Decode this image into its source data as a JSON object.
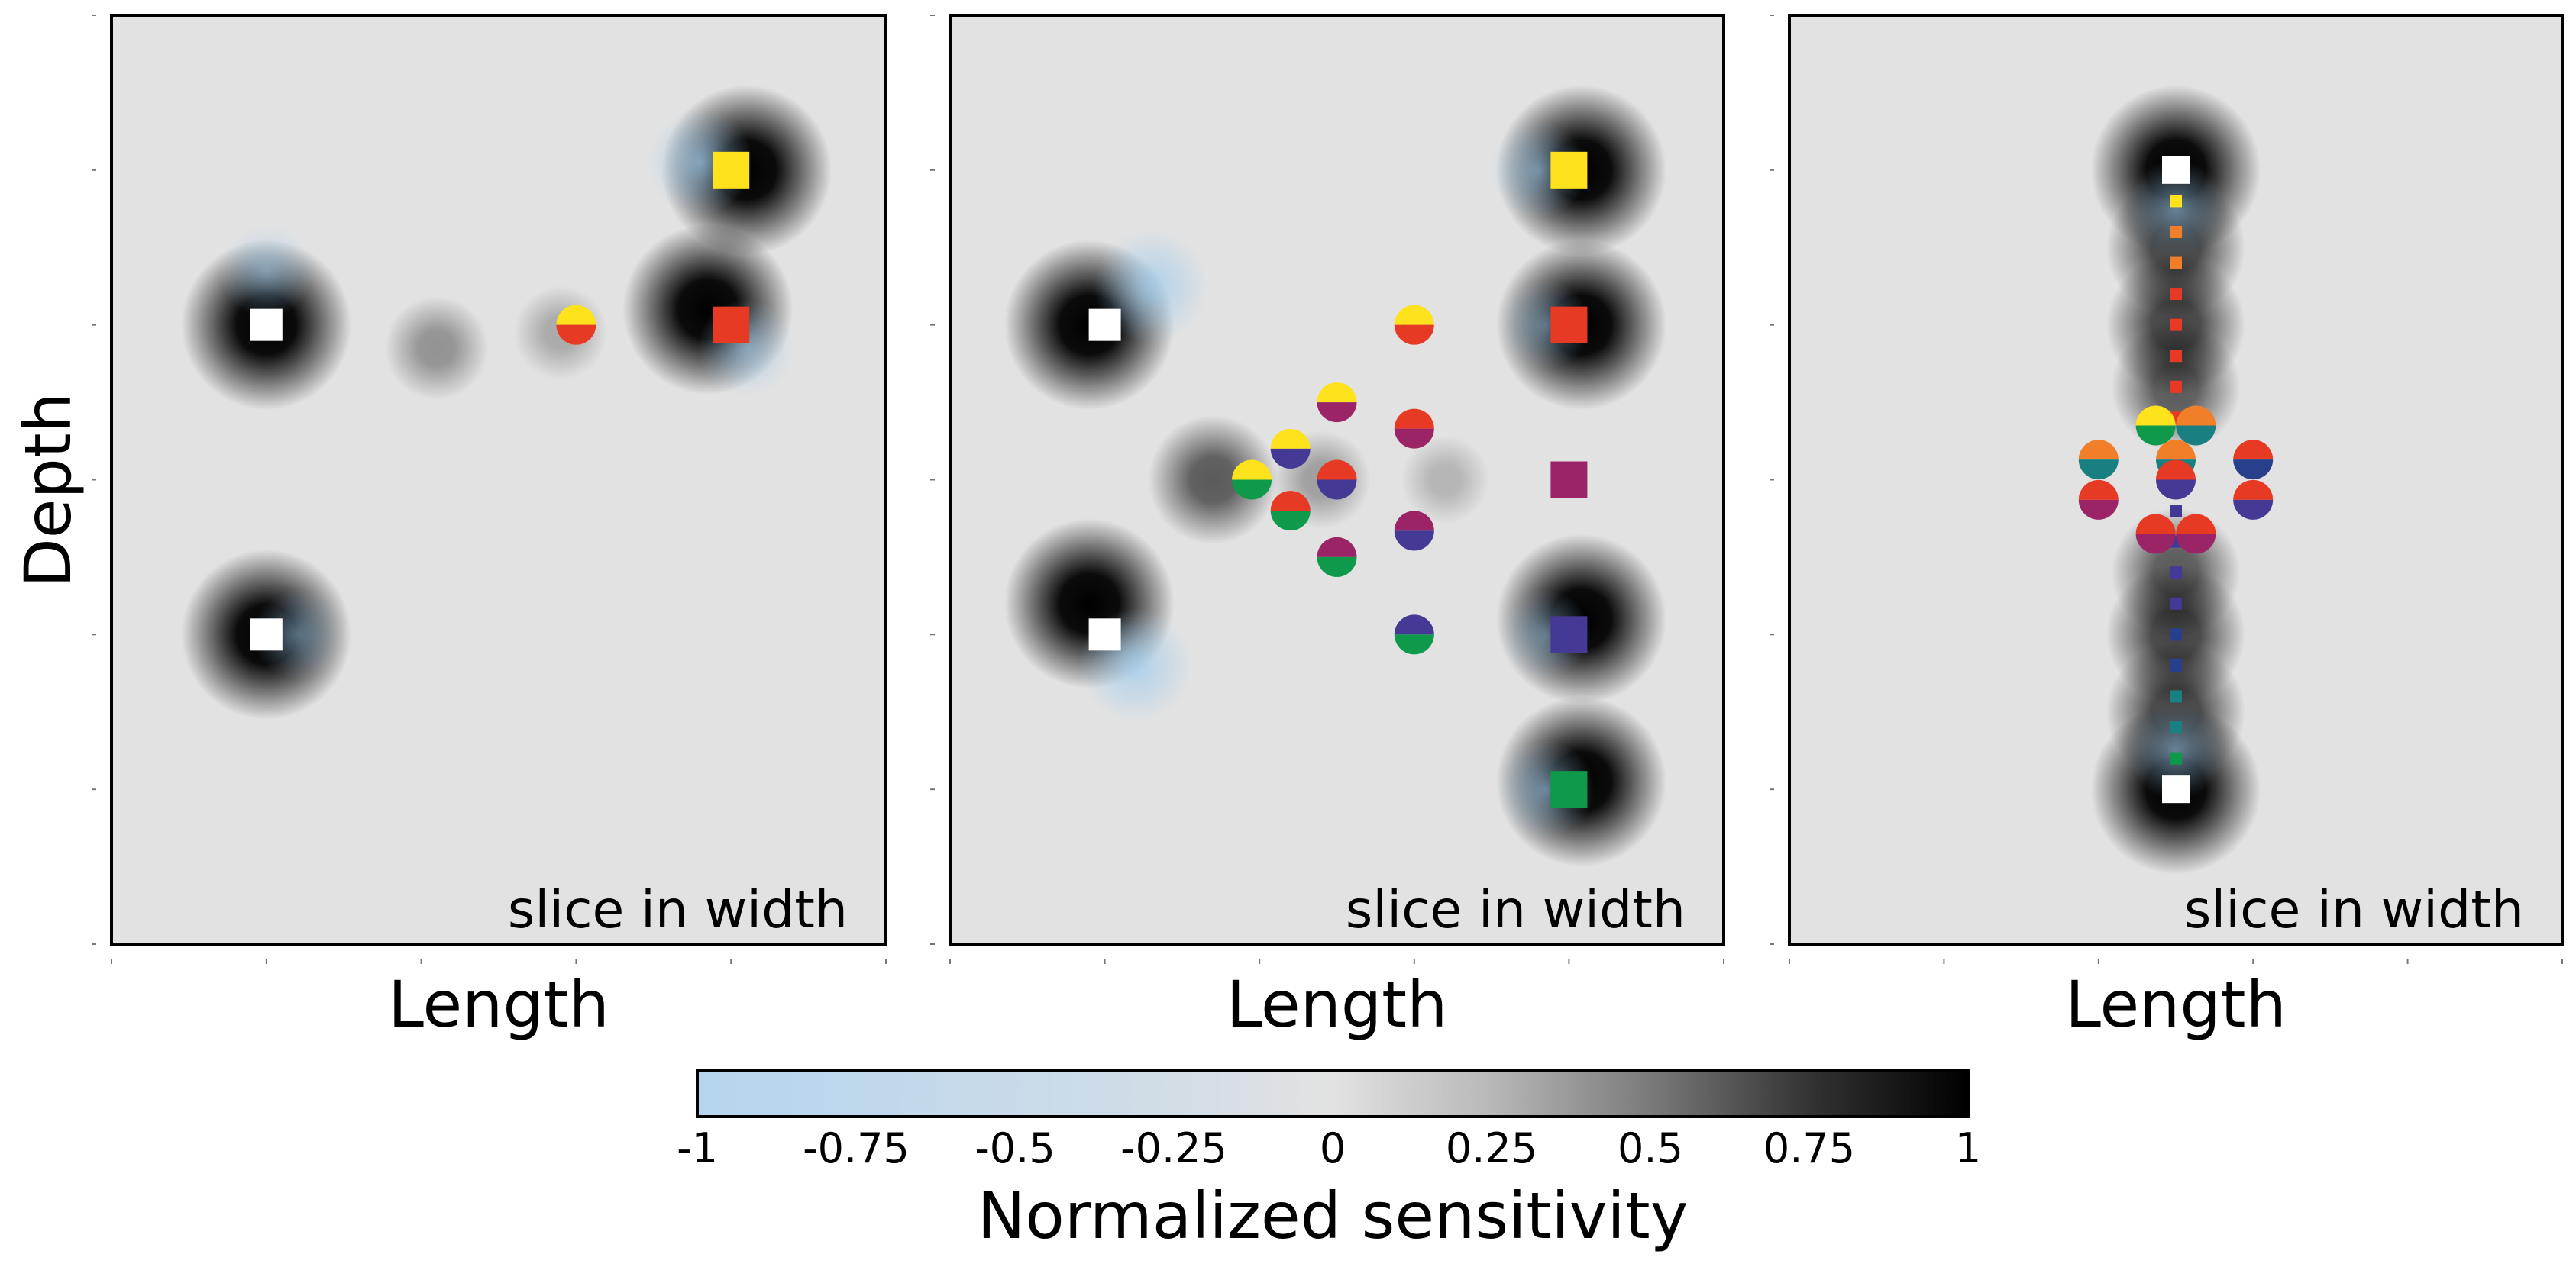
{
  "figure": {
    "ylabel": "Depth",
    "panel_label": "slice in width"
  },
  "colorbar": {
    "label": "Normalized sensitivity",
    "ticks": [
      "-1",
      "-0.75",
      "-0.5",
      "-0.25",
      "0",
      "0.25",
      "0.5",
      "0.75",
      "1"
    ],
    "tick_values": [
      -1,
      -0.75,
      -0.5,
      -0.25,
      0,
      0.25,
      0.5,
      0.75,
      1
    ],
    "range": [
      -1,
      1
    ],
    "stops": [
      {
        "value": -1,
        "color": "#b5d5ef"
      },
      {
        "value": -0.25,
        "color": "#d2dde6"
      },
      {
        "value": 0,
        "color": "#e2e2e2"
      },
      {
        "value": 0.25,
        "color": "#b8b8b8"
      },
      {
        "value": 0.5,
        "color": "#7a7a7a"
      },
      {
        "value": 0.75,
        "color": "#333333"
      },
      {
        "value": 1,
        "color": "#000000"
      }
    ]
  },
  "colors": {
    "yellow": "#fde21c",
    "red": "#e73a25",
    "magenta": "#9a2466",
    "indigo": "#443a96",
    "green": "#0e9a4a",
    "orange": "#f17f2a",
    "teal": "#1a7f80",
    "blue": "#283f8c",
    "white": "#ffffff"
  },
  "chart_data": [
    {
      "type": "heatmap",
      "xlabel": "Length",
      "ylabel": "Depth",
      "annotation": "slice in width",
      "xlim": [
        0,
        5
      ],
      "ylim": [
        0,
        6
      ],
      "sources": [
        {
          "x": 1,
          "y": 4
        },
        {
          "x": 1,
          "y": 2
        }
      ],
      "receivers": [
        {
          "x": 4,
          "y": 5,
          "color": "yellow"
        },
        {
          "x": 4,
          "y": 4,
          "color": "red"
        }
      ],
      "sensitivity_points": [
        {
          "x": 3,
          "y": 4,
          "top": "yellow",
          "bottom": "red"
        }
      ],
      "blobs": [
        {
          "x": 1,
          "y": 4,
          "v": 1
        },
        {
          "x": 1,
          "y": 2,
          "v": 1
        },
        {
          "x": 4.1,
          "y": 5,
          "v": 1
        },
        {
          "x": 3.85,
          "y": 4.1,
          "v": 1
        },
        {
          "x": 2.1,
          "y": 3.85,
          "v": 0.35
        },
        {
          "x": 2.9,
          "y": 3.95,
          "v": 0.25
        },
        {
          "x": 3.8,
          "y": 5.05,
          "v": -0.6
        },
        {
          "x": 4.1,
          "y": 3.85,
          "v": -0.5
        },
        {
          "x": 1,
          "y": 4.35,
          "v": -0.45
        },
        {
          "x": 1.2,
          "y": 2,
          "v": -0.4
        }
      ]
    },
    {
      "type": "heatmap",
      "xlabel": "Length",
      "ylabel": "Depth",
      "annotation": "slice in width",
      "xlim": [
        0,
        5
      ],
      "ylim": [
        0,
        6
      ],
      "sources": [
        {
          "x": 1,
          "y": 4
        },
        {
          "x": 1,
          "y": 2
        }
      ],
      "receivers": [
        {
          "x": 4,
          "y": 5,
          "color": "yellow"
        },
        {
          "x": 4,
          "y": 4,
          "color": "red"
        },
        {
          "x": 4,
          "y": 3,
          "color": "magenta"
        },
        {
          "x": 4,
          "y": 2,
          "color": "indigo"
        },
        {
          "x": 4,
          "y": 1,
          "color": "green"
        }
      ],
      "sensitivity_points": [
        {
          "x": 3,
          "y": 4,
          "top": "yellow",
          "bottom": "red"
        },
        {
          "x": 2.5,
          "y": 3.5,
          "top": "yellow",
          "bottom": "magenta"
        },
        {
          "x": 3,
          "y": 3.33,
          "top": "red",
          "bottom": "magenta"
        },
        {
          "x": 2.2,
          "y": 3.2,
          "top": "yellow",
          "bottom": "indigo"
        },
        {
          "x": 2.5,
          "y": 3,
          "top": "red",
          "bottom": "indigo"
        },
        {
          "x": 1.95,
          "y": 3,
          "top": "yellow",
          "bottom": "green"
        },
        {
          "x": 2.2,
          "y": 2.8,
          "top": "red",
          "bottom": "green"
        },
        {
          "x": 3,
          "y": 2.67,
          "top": "magenta",
          "bottom": "indigo"
        },
        {
          "x": 2.5,
          "y": 2.5,
          "top": "magenta",
          "bottom": "green"
        },
        {
          "x": 3,
          "y": 2,
          "top": "indigo",
          "bottom": "green"
        }
      ],
      "blobs": [
        {
          "x": 0.9,
          "y": 4,
          "v": 1
        },
        {
          "x": 0.9,
          "y": 2.2,
          "v": 1
        },
        {
          "x": 4.08,
          "y": 5,
          "v": 1
        },
        {
          "x": 4.08,
          "y": 4,
          "v": 1
        },
        {
          "x": 4.08,
          "y": 2.1,
          "v": 1
        },
        {
          "x": 4.08,
          "y": 1.05,
          "v": 1
        },
        {
          "x": 1.7,
          "y": 3,
          "v": 0.6
        },
        {
          "x": 2.4,
          "y": 3,
          "v": 0.3
        },
        {
          "x": 3.2,
          "y": 3,
          "v": 0.2
        },
        {
          "x": 1.3,
          "y": 4.25,
          "v": -0.7
        },
        {
          "x": 1.2,
          "y": 1.8,
          "v": -0.7
        },
        {
          "x": 3.8,
          "y": 5,
          "v": -0.5
        },
        {
          "x": 3.85,
          "y": 4,
          "v": -0.4
        },
        {
          "x": 3.85,
          "y": 2,
          "v": -0.4
        },
        {
          "x": 3.85,
          "y": 1,
          "v": -0.5
        }
      ]
    },
    {
      "type": "heatmap",
      "xlabel": "Length",
      "ylabel": "Depth",
      "annotation": "slice in width",
      "xlim": [
        0,
        5
      ],
      "ylim": [
        0,
        6
      ],
      "sources": [
        {
          "x": 2.5,
          "y": 5
        },
        {
          "x": 2.5,
          "y": 1
        }
      ],
      "receivers": [
        {
          "x": 2.5,
          "y": 4.8,
          "color": "yellow"
        },
        {
          "x": 2.5,
          "y": 4.6,
          "color": "orange"
        },
        {
          "x": 2.5,
          "y": 4.4,
          "color": "orange"
        },
        {
          "x": 2.5,
          "y": 4.2,
          "color": "red"
        },
        {
          "x": 2.5,
          "y": 4.0,
          "color": "red"
        },
        {
          "x": 2.5,
          "y": 3.8,
          "color": "red"
        },
        {
          "x": 2.5,
          "y": 3.6,
          "color": "red"
        },
        {
          "x": 2.5,
          "y": 3.4,
          "color": "red"
        },
        {
          "x": 2.5,
          "y": 3.2,
          "color": "magenta"
        },
        {
          "x": 2.5,
          "y": 3.0,
          "color": "magenta"
        },
        {
          "x": 2.5,
          "y": 2.8,
          "color": "indigo"
        },
        {
          "x": 2.5,
          "y": 2.6,
          "color": "indigo"
        },
        {
          "x": 2.5,
          "y": 2.4,
          "color": "indigo"
        },
        {
          "x": 2.5,
          "y": 2.2,
          "color": "indigo"
        },
        {
          "x": 2.5,
          "y": 2.0,
          "color": "blue"
        },
        {
          "x": 2.5,
          "y": 1.8,
          "color": "blue"
        },
        {
          "x": 2.5,
          "y": 1.6,
          "color": "teal"
        },
        {
          "x": 2.5,
          "y": 1.4,
          "color": "teal"
        },
        {
          "x": 2.5,
          "y": 1.2,
          "color": "green"
        }
      ],
      "sensitivity_points": [
        {
          "x": 2.37,
          "y": 3.35,
          "top": "yellow",
          "bottom": "green"
        },
        {
          "x": 2.63,
          "y": 3.35,
          "top": "orange",
          "bottom": "teal"
        },
        {
          "x": 2.0,
          "y": 3.13,
          "top": "orange",
          "bottom": "teal"
        },
        {
          "x": 2.5,
          "y": 3.13,
          "top": "orange",
          "bottom": "teal"
        },
        {
          "x": 3.0,
          "y": 3.13,
          "top": "red",
          "bottom": "blue"
        },
        {
          "x": 2.0,
          "y": 2.87,
          "top": "red",
          "bottom": "magenta"
        },
        {
          "x": 2.5,
          "y": 3.0,
          "top": "red",
          "bottom": "indigo"
        },
        {
          "x": 3.0,
          "y": 2.87,
          "top": "red",
          "bottom": "indigo"
        },
        {
          "x": 2.37,
          "y": 2.65,
          "top": "red",
          "bottom": "magenta"
        },
        {
          "x": 2.63,
          "y": 2.65,
          "top": "red",
          "bottom": "magenta"
        }
      ],
      "blobs": [
        {
          "x": 2.5,
          "y": 5,
          "v": 1
        },
        {
          "x": 2.5,
          "y": 1,
          "v": 1
        },
        {
          "x": 2.5,
          "y": 4.5,
          "v": 0.7
        },
        {
          "x": 2.5,
          "y": 4.0,
          "v": 0.7
        },
        {
          "x": 2.5,
          "y": 3.6,
          "v": 0.6
        },
        {
          "x": 2.5,
          "y": 2.4,
          "v": 0.6
        },
        {
          "x": 2.5,
          "y": 2.0,
          "v": 0.7
        },
        {
          "x": 2.5,
          "y": 1.5,
          "v": 0.7
        },
        {
          "x": 2.5,
          "y": 4.75,
          "v": -0.5
        },
        {
          "x": 2.5,
          "y": 1.25,
          "v": -0.5
        }
      ]
    }
  ]
}
